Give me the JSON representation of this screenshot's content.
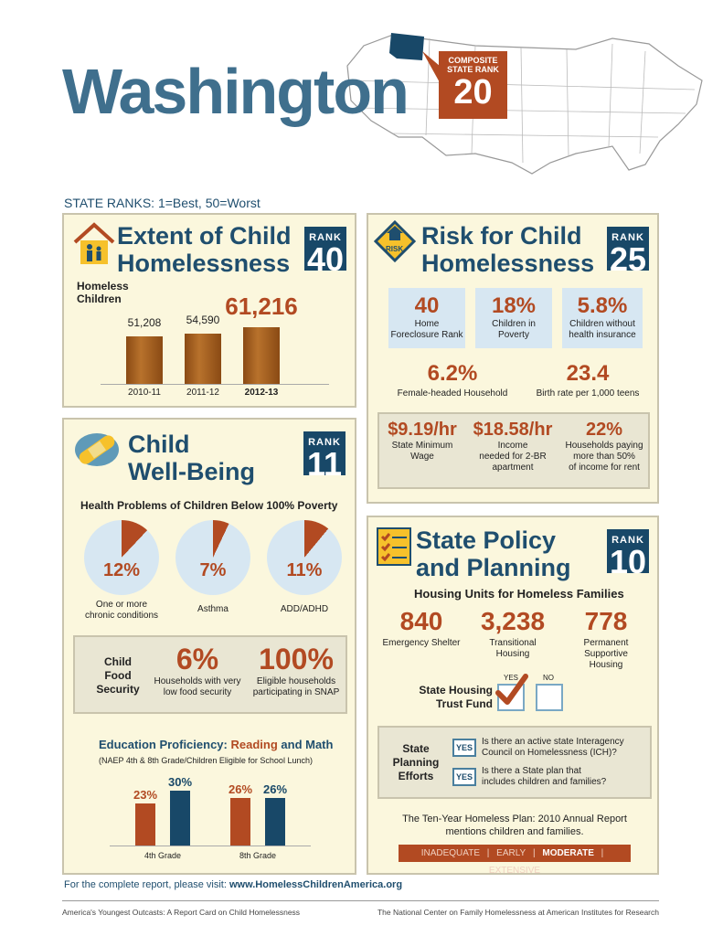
{
  "header": {
    "state": "Washington",
    "composite_label_1": "COMPOSITE",
    "composite_label_2": "STATE RANK",
    "composite_rank": "20",
    "ranks_note": "STATE RANKS: 1=Best, 50=Worst"
  },
  "extent": {
    "title_1": "Extent of Child",
    "title_2": "Homelessness",
    "rank_label": "RANK",
    "rank": "40",
    "sub_1": "Homeless",
    "sub_2": "Children",
    "chart_data": {
      "type": "bar",
      "categories": [
        "2010-11",
        "2011-12",
        "2012-13"
      ],
      "values": [
        51208,
        54590,
        61216
      ],
      "value_labels": [
        "51,208",
        "54,590",
        "61,216"
      ],
      "title": "Homeless Children"
    }
  },
  "risk": {
    "title_1": "Risk for Child",
    "title_2": "Homelessness",
    "rank_label": "RANK",
    "rank": "25",
    "icon_text": "RISK",
    "stats": [
      {
        "value": "40",
        "label_1": "Home",
        "label_2": "Foreclosure Rank"
      },
      {
        "value": "18%",
        "label_1": "Children in",
        "label_2": "Poverty"
      },
      {
        "value": "5.8%",
        "label_1": "Children without",
        "label_2": "health insurance"
      }
    ],
    "stats2": [
      {
        "value": "6.2%",
        "label": "Female-headed Household"
      },
      {
        "value": "23.4",
        "label": "Birth rate per 1,000 teens"
      }
    ],
    "stats3": [
      {
        "value": "$9.19/hr",
        "label_1": "State Minimum",
        "label_2": "Wage",
        "label_3": ""
      },
      {
        "value": "$18.58/hr",
        "label_1": "Income",
        "label_2": "needed for 2-BR",
        "label_3": "apartment"
      },
      {
        "value": "22%",
        "label_1": "Households paying",
        "label_2": "more than 50%",
        "label_3": "of income for rent"
      }
    ]
  },
  "wellbeing": {
    "title_1": "Child",
    "title_2": "Well-Being",
    "rank_label": "RANK",
    "rank": "11",
    "health_title": "Health Problems of Children Below 100% Poverty",
    "pies": [
      {
        "pct": 12,
        "value": "12%",
        "label_1": "One or more",
        "label_2": "chronic conditions"
      },
      {
        "pct": 7,
        "value": "7%",
        "label_1": "Asthma",
        "label_2": ""
      },
      {
        "pct": 11,
        "value": "11%",
        "label_1": "ADD/ADHD",
        "label_2": ""
      }
    ],
    "food": {
      "label_1": "Child",
      "label_2": "Food",
      "label_3": "Security",
      "v1": "6%",
      "v1_label_1": "Households with very",
      "v1_label_2": "low food security",
      "v2": "100%",
      "v2_label_1": "Eligible households",
      "v2_label_2": "participating in SNAP"
    },
    "edu_title_1": "Education Proficiency: ",
    "edu_title_reading": "Reading",
    "edu_title_and": " and ",
    "edu_title_math": "Math",
    "edu_sub": "(NAEP 4th & 8th Grade/Children Eligible for School Lunch)",
    "chart_data": {
      "type": "bar",
      "categories": [
        "4th Grade",
        "8th Grade"
      ],
      "series": [
        {
          "name": "Reading",
          "values": [
            23,
            26
          ]
        },
        {
          "name": "Math",
          "values": [
            30,
            26
          ]
        }
      ],
      "value_labels": [
        [
          "23%",
          "26%"
        ],
        [
          "30%",
          "26%"
        ]
      ],
      "colors": [
        "#b24a22",
        "#184868"
      ]
    }
  },
  "policy": {
    "title_1": "State Policy",
    "title_2": "and Planning",
    "rank_label": "RANK",
    "rank": "10",
    "housing_title": "Housing Units for Homeless Families",
    "units": [
      {
        "value": "840",
        "label_1": "Emergency Shelter",
        "label_2": "",
        "label_3": ""
      },
      {
        "value": "3,238",
        "label_1": "Transitional",
        "label_2": "Housing",
        "label_3": ""
      },
      {
        "value": "778",
        "label_1": "Permanent",
        "label_2": "Supportive",
        "label_3": "Housing"
      }
    ],
    "trust_label_1": "State Housing",
    "trust_label_2": "Trust Fund",
    "yes": "YES",
    "no": "NO",
    "trust_answer": "YES",
    "planning_label_1": "State",
    "planning_label_2": "Planning",
    "planning_label_3": "Efforts",
    "q1_badge": "YES",
    "q1_1": "Is there an active state Interagency",
    "q1_2": "Council on Homelessness (ICH)?",
    "q2_badge": "YES",
    "q2_1": "Is there a State plan that",
    "q2_2": "includes children and families?",
    "plan_1": "The Ten-Year Homeless Plan: 2010 Annual Report",
    "plan_2": "mentions children and families.",
    "scale": [
      "INADEQUATE",
      "EARLY",
      "MODERATE",
      "EXTENSIVE"
    ],
    "scale_selected": "MODERATE"
  },
  "footer": {
    "visit": "For the complete report, please visit: ",
    "url": "www.HomelessChildrenAmerica.org",
    "left": "America's Youngest Outcasts: A Report Card on Child Homelessness",
    "right": "The National Center on Family Homelessness at American Institutes for Research"
  },
  "colors": {
    "navy": "#184868",
    "rust": "#b24a22",
    "panel": "#fbf7dd",
    "lightblue": "#d7e7f2"
  }
}
